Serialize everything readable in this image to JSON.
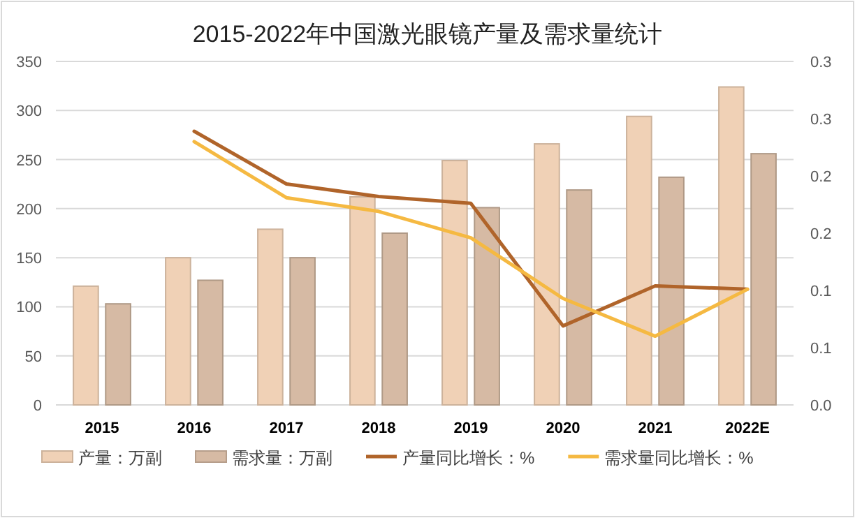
{
  "chart_data": {
    "type": "bar",
    "title": "2015-2022年中国激光眼镜产量及需求量统计",
    "categories": [
      "2015",
      "2016",
      "2017",
      "2018",
      "2019",
      "2020",
      "2021",
      "2022E"
    ],
    "series": [
      {
        "name": "产量：万副",
        "color": "#f0d1b6",
        "values": [
          121,
          150,
          179,
          212,
          249,
          266,
          294,
          324
        ]
      },
      {
        "name": "需求量：万副",
        "color": "#d6baa4",
        "values": [
          103,
          127,
          150,
          175,
          201,
          219,
          232,
          256
        ]
      },
      {
        "name": "产量同比增长：%",
        "type": "line",
        "axis": "y2",
        "color": "#b0642a",
        "values": [
          null,
          0.239,
          0.193,
          0.182,
          0.176,
          0.069,
          0.104,
          0.101
        ]
      },
      {
        "name": "需求量同比增长：%",
        "type": "line",
        "axis": "y2",
        "color": "#f5b942",
        "values": [
          null,
          0.23,
          0.181,
          0.169,
          0.146,
          0.093,
          0.06,
          0.101
        ]
      }
    ],
    "ylim": [
      0,
      350
    ],
    "yticks": [
      0,
      50,
      100,
      150,
      200,
      250,
      300,
      350
    ],
    "y2lim": [
      0,
      0.3
    ],
    "y2ticks": [
      {
        "value": 0,
        "label": "0.0"
      },
      {
        "value": 0.05,
        "label": "0.1"
      },
      {
        "value": 0.1,
        "label": "0.1"
      },
      {
        "value": 0.15,
        "label": "0.2"
      },
      {
        "value": 0.2,
        "label": "0.2"
      },
      {
        "value": 0.25,
        "label": "0.3"
      },
      {
        "value": 0.3,
        "label": "0.3"
      }
    ],
    "grid": "y",
    "legend": "bottom"
  }
}
